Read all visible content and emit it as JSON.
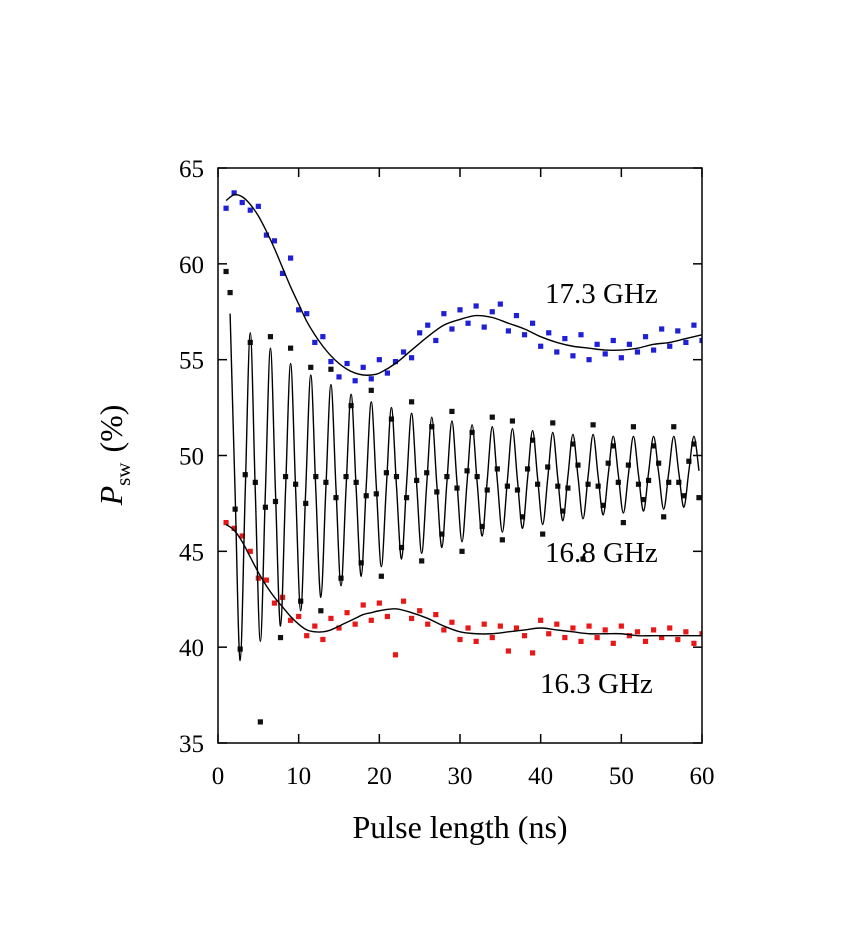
{
  "chart_data": {
    "type": "scatter",
    "xlabel": "Pulse length (ns)",
    "ylabel": "P",
    "ylabel_sub": "sw",
    "ylabel_unit": "(%)",
    "annotations": [
      "17.3 GHz",
      "16.8 GHz",
      "16.3 GHz"
    ],
    "xlim": [
      0,
      60
    ],
    "ylim": [
      35,
      65
    ],
    "xticks": [
      0,
      10,
      20,
      30,
      40,
      50,
      60
    ],
    "yticks": [
      35,
      40,
      45,
      50,
      55,
      60,
      65
    ],
    "series": [
      {
        "kind": "markers",
        "color": "#1f1fd8",
        "x": [
          1,
          2,
          3,
          4,
          5,
          6,
          7,
          8,
          9,
          10,
          11,
          12,
          13,
          14,
          15,
          16,
          17,
          18,
          19,
          20,
          21,
          22,
          23,
          24,
          25,
          26,
          27,
          28,
          29,
          30,
          31,
          32,
          33,
          34,
          35,
          36,
          37,
          38,
          39,
          40,
          41,
          42,
          43,
          44,
          45,
          46,
          47,
          48,
          49,
          50,
          51,
          52,
          53,
          54,
          55,
          56,
          57,
          58,
          59,
          60
        ],
        "values": [
          62.9,
          63.7,
          63.2,
          62.8,
          63.0,
          61.5,
          61.2,
          59.5,
          60.3,
          57.6,
          57.4,
          55.9,
          56.2,
          54.9,
          54.1,
          54.8,
          53.9,
          54.6,
          54.0,
          55.0,
          54.3,
          54.9,
          55.4,
          55.1,
          56.4,
          56.8,
          56.0,
          57.4,
          56.6,
          57.6,
          56.9,
          57.8,
          56.7,
          57.5,
          57.9,
          56.5,
          57.3,
          56.3,
          56.9,
          55.7,
          56.4,
          55.4,
          56.1,
          55.2,
          56.3,
          55.0,
          55.8,
          55.3,
          56.0,
          55.1,
          55.8,
          55.4,
          56.2,
          55.5,
          56.6,
          55.7,
          56.5,
          55.9,
          56.8,
          56.0
        ]
      },
      {
        "kind": "markers",
        "color": "#111111",
        "x": [
          1.0,
          1.5,
          2.125,
          2.75,
          3.375,
          4.0,
          4.625,
          5.25,
          5.875,
          6.5,
          7.125,
          7.75,
          8.375,
          9.0,
          9.625,
          10.25,
          10.875,
          11.5,
          12.125,
          12.75,
          13.375,
          14,
          14.625,
          15.25,
          15.875,
          16.5,
          17.125,
          17.75,
          18.375,
          19,
          19.625,
          20.25,
          20.875,
          21.5,
          22.125,
          22.75,
          23.375,
          24,
          24.625,
          25.25,
          25.875,
          26.5,
          27.125,
          27.75,
          28.375,
          29,
          29.625,
          30.25,
          30.875,
          31.5,
          32.125,
          32.75,
          33.375,
          34,
          34.625,
          35.25,
          35.875,
          36.5,
          37.125,
          37.75,
          38.375,
          39,
          39.625,
          40.25,
          40.875,
          41.5,
          42.125,
          42.75,
          43.375,
          44,
          44.625,
          45.25,
          45.875,
          46.5,
          47.125,
          47.75,
          48.375,
          49,
          49.625,
          50.25,
          50.875,
          51.5,
          52.125,
          52.75,
          53.375,
          54,
          54.625,
          55.25,
          55.875,
          56.5,
          57.125,
          57.75,
          58.375,
          59,
          59.625
        ],
        "values": [
          59.6,
          58.5,
          47.2,
          39.9,
          49.0,
          55.9,
          48.6,
          36.1,
          47.3,
          56.2,
          47.6,
          40.5,
          48.9,
          55.6,
          48.5,
          42.4,
          47.5,
          54.6,
          48.9,
          41.9,
          48.6,
          54.5,
          47.8,
          43.6,
          48.9,
          52.6,
          48.6,
          44.4,
          47.9,
          53.4,
          48.0,
          43.7,
          49.1,
          51.9,
          48.9,
          45.2,
          47.8,
          52.8,
          48.7,
          44.5,
          49.1,
          51.5,
          48.1,
          45.9,
          48.9,
          52.3,
          48.3,
          45.0,
          49.2,
          51.2,
          48.9,
          46.3,
          48.2,
          52.0,
          49.3,
          45.6,
          48.4,
          51.8,
          48.2,
          46.8,
          49.3,
          50.8,
          48.5,
          45.9,
          49.4,
          51.7,
          48.4,
          47.1,
          48.3,
          50.6,
          49.5,
          44.6,
          48.5,
          51.6,
          48.4,
          47.4,
          49.6,
          50.5,
          48.6,
          46.5,
          49.5,
          51.5,
          48.5,
          47.7,
          48.7,
          50.5,
          49.6,
          46.8,
          48.6,
          51.5,
          48.6,
          47.9,
          49.7,
          50.6,
          47.8
        ]
      },
      {
        "kind": "markers",
        "color": "#e81818",
        "x": [
          1,
          2,
          3,
          4,
          5,
          6,
          7,
          8,
          9,
          10,
          11,
          12,
          13,
          14,
          15,
          16,
          17,
          18,
          19,
          20,
          21,
          22,
          23,
          24,
          25,
          26,
          27,
          28,
          29,
          30,
          31,
          32,
          33,
          34,
          35,
          36,
          37,
          38,
          39,
          40,
          41,
          42,
          43,
          44,
          45,
          46,
          47,
          48,
          49,
          50,
          51,
          52,
          53,
          54,
          55,
          56,
          57,
          58,
          59,
          60
        ],
        "values": [
          46.5,
          46.2,
          45.8,
          45.0,
          43.6,
          43.5,
          42.3,
          42.6,
          41.4,
          41.6,
          40.6,
          41.1,
          40.4,
          41.5,
          41.0,
          41.8,
          41.2,
          42.2,
          41.4,
          42.3,
          41.6,
          39.6,
          42.4,
          41.5,
          41.9,
          41.2,
          41.7,
          40.9,
          41.3,
          40.4,
          41.0,
          40.3,
          41.2,
          40.5,
          41.1,
          39.8,
          41.0,
          40.6,
          39.7,
          41.4,
          40.7,
          41.2,
          40.5,
          41.0,
          40.3,
          41.1,
          40.5,
          40.9,
          40.2,
          41.1,
          40.6,
          40.8,
          40.3,
          40.9,
          40.5,
          41.0,
          40.4,
          40.8,
          40.2,
          40.7
        ]
      },
      {
        "kind": "line",
        "color": "#000000",
        "x": [
          1,
          2,
          3,
          4,
          5,
          6,
          7,
          8,
          9,
          10,
          11,
          12,
          13,
          14,
          15,
          16,
          17,
          18,
          19,
          20,
          22,
          24,
          26,
          28,
          30,
          32,
          34,
          36,
          38,
          40,
          42,
          44,
          46,
          48,
          50,
          52,
          54,
          56,
          58,
          60
        ],
        "values": [
          63.3,
          63.6,
          63.5,
          63.1,
          62.5,
          61.7,
          60.8,
          59.8,
          58.8,
          57.9,
          57.0,
          56.3,
          55.7,
          55.2,
          54.8,
          54.5,
          54.3,
          54.2,
          54.2,
          54.3,
          54.8,
          55.5,
          56.2,
          56.8,
          57.1,
          57.3,
          57.2,
          56.9,
          56.6,
          56.2,
          55.9,
          55.7,
          55.6,
          55.5,
          55.5,
          55.6,
          55.8,
          55.9,
          56.1,
          56.3
        ]
      },
      {
        "kind": "line",
        "color": "#000000",
        "x": [
          1.5,
          2.125,
          2.75,
          3.375,
          4.0,
          4.625,
          5.25,
          5.875,
          6.5,
          7.125,
          7.75,
          8.375,
          9.0,
          9.625,
          10.25,
          10.875,
          11.5,
          12.125,
          12.75,
          13.375,
          14,
          14.625,
          15.25,
          15.875,
          16.5,
          17.125,
          17.75,
          18.375,
          19,
          19.625,
          20.25,
          20.875,
          21.5,
          22.125,
          22.75,
          23.375,
          24,
          24.625,
          25.25,
          25.875,
          26.5,
          27.125,
          27.75,
          28.375,
          29,
          29.625,
          30.25,
          30.875,
          31.5,
          32.125,
          32.75,
          33.375,
          34,
          34.625,
          35.25,
          35.875,
          36.5,
          37.125,
          37.75,
          38.375,
          39,
          39.625,
          40.25,
          40.875,
          41.5,
          42.125,
          42.75,
          43.375,
          44,
          44.625,
          45.25,
          45.875,
          46.5,
          47.125,
          47.75,
          48.375,
          49,
          49.625,
          50.25,
          50.875,
          51.5,
          52.125,
          52.75,
          53.375,
          54,
          54.625,
          55.25,
          55.875,
          56.5,
          57.125,
          57.75,
          58.375,
          59,
          59.625
        ],
        "values": [
          57.4,
          48.0,
          39.3,
          48.1,
          56.4,
          48.1,
          40.3,
          48.1,
          55.6,
          48.1,
          41.1,
          48.2,
          54.8,
          48.2,
          41.9,
          48.2,
          54.2,
          48.2,
          42.6,
          48.3,
          53.7,
          48.3,
          43.2,
          48.3,
          53.2,
          48.3,
          43.7,
          48.4,
          52.8,
          48.4,
          44.2,
          48.4,
          52.5,
          48.4,
          44.6,
          48.5,
          52.2,
          48.5,
          44.9,
          48.5,
          52.0,
          48.5,
          45.2,
          48.6,
          51.8,
          48.6,
          45.5,
          48.6,
          51.6,
          48.6,
          45.8,
          48.7,
          51.5,
          48.7,
          46.0,
          48.7,
          51.4,
          48.7,
          46.2,
          48.8,
          51.3,
          48.8,
          46.4,
          48.8,
          51.2,
          48.8,
          46.6,
          48.9,
          51.1,
          48.9,
          46.7,
          48.9,
          51.1,
          48.9,
          46.9,
          49.0,
          51.0,
          49.0,
          47.0,
          49.0,
          51.0,
          49.0,
          47.1,
          49.1,
          51.0,
          49.1,
          47.2,
          49.1,
          51.0,
          49.1,
          47.3,
          49.2,
          51.0,
          49.2
        ]
      },
      {
        "kind": "line",
        "color": "#000000",
        "x": [
          1,
          2,
          3,
          4,
          5,
          6,
          7,
          8,
          9,
          10,
          11,
          12,
          13,
          14,
          15,
          16,
          17,
          18,
          19,
          20,
          22,
          24,
          26,
          28,
          30,
          32,
          34,
          36,
          38,
          40,
          42,
          44,
          46,
          48,
          50,
          52,
          54,
          56,
          58,
          60
        ],
        "values": [
          46.4,
          46.1,
          45.5,
          44.7,
          43.9,
          43.2,
          42.6,
          42.1,
          41.6,
          41.2,
          40.9,
          40.8,
          40.8,
          40.9,
          41.1,
          41.3,
          41.5,
          41.7,
          41.8,
          41.9,
          42.0,
          41.8,
          41.5,
          41.1,
          40.8,
          40.7,
          40.7,
          40.8,
          40.9,
          41.0,
          40.9,
          40.8,
          40.7,
          40.7,
          40.7,
          40.6,
          40.6,
          40.6,
          40.6,
          40.6
        ]
      }
    ]
  }
}
